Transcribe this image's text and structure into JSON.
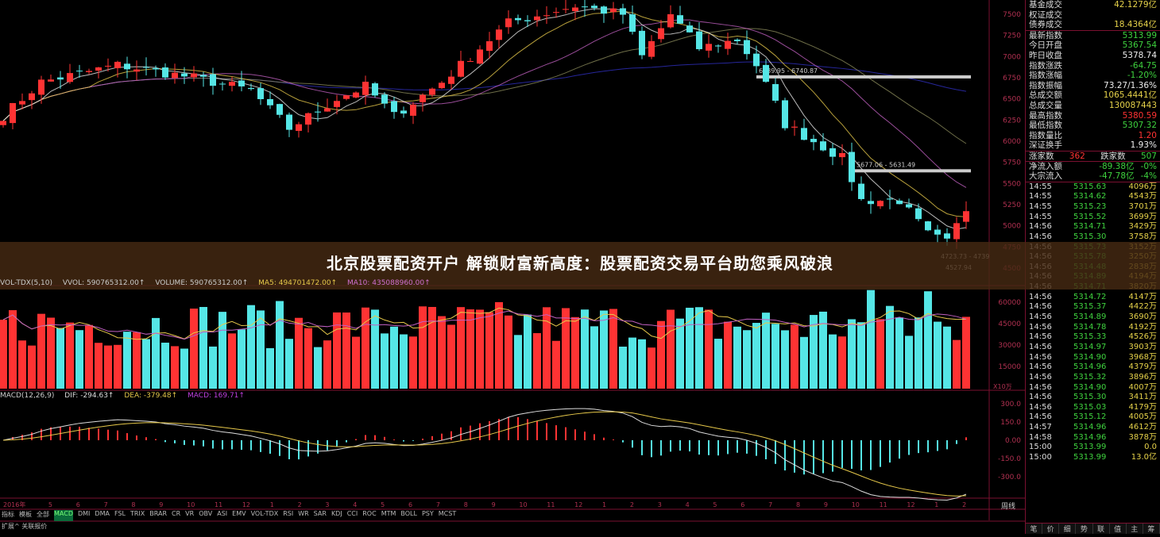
{
  "banner": {
    "title": "北京股票配资开户 解锁财富新高度：股票配资交易平台助您乘风破浪"
  },
  "colors": {
    "up": "#ff3333",
    "down": "#55e6e6",
    "ma5": "#e8e8e8",
    "ma10": "#e6c84a",
    "ma20": "#c060c0",
    "ma60": "#8a8a5a",
    "ma250": "#3030c0",
    "grid": "#7a1030"
  },
  "price_axis": [
    "7500",
    "7250",
    "7000",
    "6750",
    "6500",
    "6250",
    "6000",
    "5750",
    "5500",
    "5250",
    "5000",
    "4750",
    "4500"
  ],
  "price_annotations": [
    "6789.95 - 6740.87",
    "5677.06 - 5631.49",
    "4723.73 - 4739",
    "4527.94"
  ],
  "price_path": [
    {
      "bar": 0,
      "close": 6300
    },
    {
      "bar": 4,
      "close": 6700
    },
    {
      "bar": 12,
      "close": 6900
    },
    {
      "bar": 20,
      "close": 6750
    },
    {
      "bar": 26,
      "close": 6600
    },
    {
      "bar": 30,
      "close": 6150
    },
    {
      "bar": 35,
      "close": 6500
    },
    {
      "bar": 38,
      "close": 6650
    },
    {
      "bar": 41,
      "close": 6300
    },
    {
      "bar": 46,
      "close": 6700
    },
    {
      "bar": 53,
      "close": 7400
    },
    {
      "bar": 60,
      "close": 7600
    },
    {
      "bar": 65,
      "close": 7500
    },
    {
      "bar": 67,
      "close": 7000
    },
    {
      "bar": 70,
      "close": 7500
    },
    {
      "bar": 73,
      "close": 7100
    },
    {
      "bar": 77,
      "close": 7200
    },
    {
      "bar": 79,
      "close": 6900
    },
    {
      "bar": 82,
      "close": 6200
    },
    {
      "bar": 88,
      "close": 5800
    },
    {
      "bar": 90,
      "close": 5300
    },
    {
      "bar": 94,
      "close": 5300
    },
    {
      "bar": 97,
      "close": 4900
    },
    {
      "bar": 99,
      "close": 4800
    },
    {
      "bar": 101,
      "close": 5200
    }
  ],
  "volume": {
    "label": "VOL-TDX(5,10)",
    "vvol": "VVOL: 590765312.00↑",
    "volume": "VOLUME: 590765312.00↑",
    "ma5": "MA5: 494701472.00↑",
    "ma10": "MA10: 435088960.00↑",
    "axis": [
      "60000",
      "45000",
      "30000",
      "15000"
    ],
    "unit": "X10万"
  },
  "macd": {
    "label": "MACD(12,26,9)",
    "dif": "DIF: -294.63↑",
    "dea": "DEA: -379.48↑",
    "macd": "MACD: 169.71↑",
    "axis": [
      "300.0",
      "150.0",
      "0.00",
      "-150.0",
      "-300.0"
    ]
  },
  "time_axis": [
    "2016年",
    "5",
    "6",
    "7",
    "8",
    "9",
    "10",
    "11",
    "12",
    "1",
    "2",
    "3",
    "4",
    "5",
    "6",
    "7",
    "8",
    "9",
    "10",
    "11",
    "12",
    "1",
    "2",
    "3",
    "4",
    "5",
    "6",
    "7",
    "8",
    "9",
    "10",
    "11",
    "12",
    "1",
    "2"
  ],
  "period": "周线",
  "tabs": [
    "指标",
    "模板",
    "全部",
    "MACD",
    "DMI",
    "DMA",
    "FSL",
    "TRIX",
    "BRAR",
    "CR",
    "VR",
    "OBV",
    "ASI",
    "EMV",
    "VOL-TDX",
    "RSI",
    "WR",
    "SAR",
    "KDJ",
    "CCI",
    "ROC",
    "MTM",
    "BOLL",
    "PSY",
    "MCST"
  ],
  "footer": "扩展^  关联报价",
  "quote": {
    "rows1": [
      {
        "k": "基金成交",
        "v": "42.1279亿",
        "c": "#e6d24a"
      },
      {
        "k": "权证成交",
        "v": "",
        "c": "#ddd"
      },
      {
        "k": "债券成交",
        "v": "18.4364亿",
        "c": "#e6d24a"
      }
    ],
    "rows2": [
      {
        "k": "最新指数",
        "v": "5313.99",
        "c": "#3ed23e"
      },
      {
        "k": "今日开盘",
        "v": "5367.54",
        "c": "#3ed23e"
      },
      {
        "k": "昨日收盘",
        "v": "5378.74",
        "c": "#eee"
      },
      {
        "k": "指数涨跌",
        "v": "-64.75",
        "c": "#3ed23e"
      },
      {
        "k": "指数涨幅",
        "v": "-1.20%",
        "c": "#3ed23e"
      },
      {
        "k": "指数振幅",
        "v": "73.27/1.36%",
        "c": "#eee"
      },
      {
        "k": "总成交额",
        "v": "1065.4441亿",
        "c": "#e6d24a"
      },
      {
        "k": "总成交量",
        "v": "130087443",
        "c": "#e6d24a"
      },
      {
        "k": "最高指数",
        "v": "5380.59",
        "c": "#ff3333"
      },
      {
        "k": "最低指数",
        "v": "5307.32",
        "c": "#3ed23e"
      },
      {
        "k": "指数量比",
        "v": "1.20",
        "c": "#ff3333"
      },
      {
        "k": "深证换手",
        "v": "1.93%",
        "c": "#eee"
      }
    ],
    "updown": {
      "up_label": "涨家数",
      "up": "362",
      "down_label": "跌家数",
      "down": "507"
    },
    "flows": [
      {
        "k": "净流入额",
        "v": "-89.38亿",
        "p": "-0%"
      },
      {
        "k": "大宗流入",
        "v": "-47.78亿",
        "p": "-4%"
      }
    ],
    "ticks": [
      [
        "14:55",
        "5315.63",
        "4096万"
      ],
      [
        "14:55",
        "5314.62",
        "4543万"
      ],
      [
        "14:55",
        "5315.23",
        "3701万"
      ],
      [
        "14:55",
        "5315.52",
        "3699万"
      ],
      [
        "14:56",
        "5314.71",
        "3429万"
      ],
      [
        "14:56",
        "5315.30",
        "3758万"
      ],
      [
        "14:56",
        "5315.73",
        "3152万"
      ],
      [
        "14:56",
        "5315.78",
        "3250万"
      ],
      [
        "14:56",
        "5314.48",
        "2838万"
      ],
      [
        "14:56",
        "5314.89",
        "4194万"
      ],
      [
        "14:56",
        "5314.71",
        "3820万"
      ],
      [
        "14:56",
        "5314.72",
        "4147万"
      ],
      [
        "14:56",
        "5315.37",
        "4422万"
      ],
      [
        "14:56",
        "5314.89",
        "3690万"
      ],
      [
        "14:56",
        "5314.78",
        "4192万"
      ],
      [
        "14:56",
        "5315.33",
        "4526万"
      ],
      [
        "14:56",
        "5314.97",
        "3903万"
      ],
      [
        "14:56",
        "5314.90",
        "3968万"
      ],
      [
        "14:56",
        "5314.96",
        "4379万"
      ],
      [
        "14:56",
        "5315.32",
        "3896万"
      ],
      [
        "14:56",
        "5314.90",
        "4007万"
      ],
      [
        "14:56",
        "5315.30",
        "3411万"
      ],
      [
        "14:56",
        "5315.03",
        "4179万"
      ],
      [
        "14:56",
        "5315.12",
        "4005万"
      ],
      [
        "14:57",
        "5314.96",
        "4612万"
      ],
      [
        "14:58",
        "5314.96",
        "3878万"
      ],
      [
        "15:00",
        "5313.99",
        "0.0"
      ],
      [
        "15:00",
        "5313.99",
        "13.0亿"
      ]
    ],
    "footer_tabs": [
      "笔",
      "价",
      "细",
      "势",
      "联",
      "值",
      "主",
      "筹"
    ]
  }
}
